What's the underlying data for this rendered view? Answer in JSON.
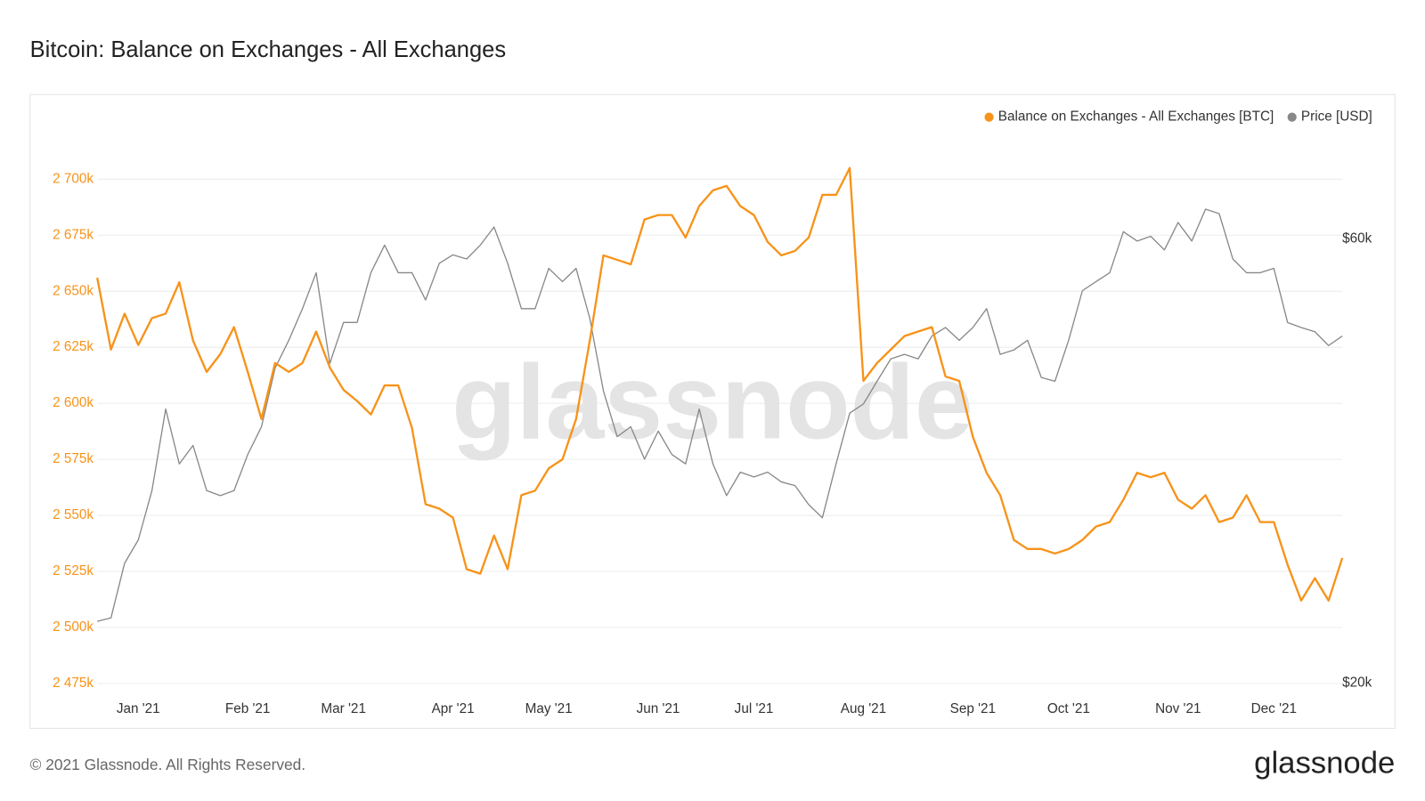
{
  "chart_data": {
    "type": "line",
    "title": "Bitcoin: Balance on Exchanges - All Exchanges",
    "footnote": "© 2021 Glassnode. All Rights Reserved.",
    "brand": "glassnode",
    "watermark": "glassnode",
    "legend": "upper right",
    "grid": true,
    "y2scale": "log",
    "categories": [
      null,
      null,
      null,
      "Jan '21",
      null,
      null,
      null,
      null,
      null,
      null,
      null,
      "Feb '21",
      null,
      null,
      null,
      null,
      null,
      null,
      "Mar '21",
      null,
      null,
      null,
      null,
      null,
      null,
      null,
      "Apr '21",
      null,
      null,
      null,
      null,
      null,
      null,
      "May '21",
      null,
      null,
      null,
      null,
      null,
      null,
      null,
      "Jun '21",
      null,
      null,
      null,
      null,
      null,
      null,
      "Jul '21",
      null,
      null,
      null,
      null,
      null,
      null,
      null,
      "Aug '21",
      null,
      null,
      null,
      null,
      null,
      null,
      null,
      "Sep '21",
      null,
      null,
      null,
      null,
      null,
      null,
      "Oct '21",
      null,
      null,
      null,
      null,
      null,
      null,
      null,
      "Nov '21",
      null,
      null,
      null,
      null,
      null,
      null,
      "Dec '21",
      null,
      null,
      null,
      null,
      null
    ],
    "series": [
      {
        "name": "Balance on Exchanges - All Exchanges [BTC]",
        "color": "#f7931a",
        "axis": "y",
        "values": [
          2656000,
          2624000,
          2640000,
          2626000,
          2638000,
          2640000,
          2654000,
          2628000,
          2614000,
          2622000,
          2634000,
          2614000,
          2593000,
          2618000,
          2614000,
          2618000,
          2632000,
          2616000,
          2606000,
          2601000,
          2595000,
          2608000,
          2608000,
          2589000,
          2555000,
          2553000,
          2549000,
          2526000,
          2524000,
          2541000,
          2526000,
          2559000,
          2561000,
          2571000,
          2575000,
          2593000,
          2628000,
          2666000,
          2664000,
          2662000,
          2682000,
          2684000,
          2684000,
          2674000,
          2688000,
          2695000,
          2697000,
          2688000,
          2684000,
          2672000,
          2666000,
          2668000,
          2674000,
          2693000,
          2693000,
          2705000,
          2610000,
          2618000,
          2624000,
          2630000,
          2632000,
          2634000,
          2612000,
          2610000,
          2585000,
          2569000,
          2559000,
          2539000,
          2535000,
          2535000,
          2533000,
          2535000,
          2539000,
          2545000,
          2547000,
          2557000,
          2569000,
          2567000,
          2569000,
          2557000,
          2553000,
          2559000,
          2547000,
          2549000,
          2559000,
          2547000,
          2547000,
          2528000,
          2512000,
          2522000,
          2512000,
          2531000
        ]
      },
      {
        "name": "Price [USD]",
        "color": "#888888",
        "axis": "y2",
        "values": [
          23300,
          23500,
          26900,
          28500,
          32200,
          39400,
          34400,
          36000,
          32200,
          31800,
          32200,
          35200,
          37700,
          43600,
          46700,
          50500,
          55200,
          44100,
          48800,
          48800,
          55200,
          59100,
          55200,
          55200,
          51600,
          56500,
          57700,
          57100,
          59100,
          61800,
          56500,
          50500,
          50500,
          55800,
          54000,
          55800,
          49300,
          41200,
          36800,
          37700,
          34800,
          37300,
          35200,
          34400,
          39400,
          34400,
          31800,
          33700,
          33300,
          33700,
          32900,
          32600,
          31100,
          30100,
          34400,
          39000,
          39900,
          42200,
          44600,
          45100,
          44600,
          47200,
          48200,
          46700,
          48200,
          50500,
          45100,
          45600,
          46700,
          42600,
          42200,
          46700,
          52800,
          54000,
          55200,
          61100,
          59700,
          60400,
          58400,
          62500,
          59700,
          64600,
          63900,
          57100,
          55200,
          55200,
          55800,
          48800,
          48200,
          47700,
          46100,
          47200
        ]
      }
    ],
    "ylim": [
      2472000,
      2722000
    ],
    "yticks": [
      {
        "value": 2475000,
        "label": "2 475k"
      },
      {
        "value": 2500000,
        "label": "2 500k"
      },
      {
        "value": 2525000,
        "label": "2 525k"
      },
      {
        "value": 2550000,
        "label": "2 550k"
      },
      {
        "value": 2575000,
        "label": "2 575k"
      },
      {
        "value": 2600000,
        "label": "2 600k"
      },
      {
        "value": 2625000,
        "label": "2 625k"
      },
      {
        "value": 2650000,
        "label": "2 650k"
      },
      {
        "value": 2675000,
        "label": "2 675k"
      },
      {
        "value": 2700000,
        "label": "2 700k"
      }
    ],
    "y2lim": [
      19650,
      78600
    ],
    "y2ticks": [
      {
        "value": 20000,
        "label": "$20k"
      },
      {
        "value": 60000,
        "label": "$60k"
      }
    ]
  }
}
